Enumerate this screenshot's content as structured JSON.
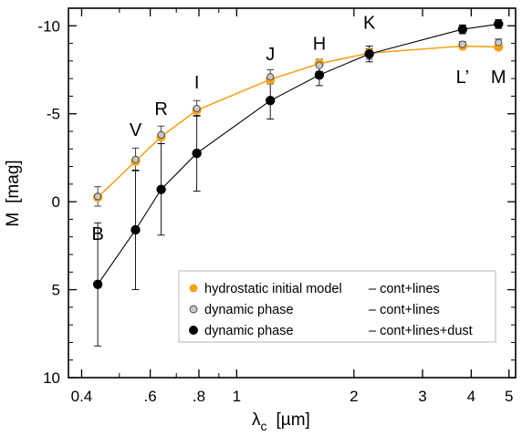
{
  "chart_data": {
    "type": "scatter",
    "xlabel": "λ",
    "xlabel_sub": "c",
    "xlabel_unit": "[µm]",
    "ylabel": "M",
    "ylabel_unit": "[mag]",
    "xscale": "log",
    "xlim": [
      0.37,
      5.2
    ],
    "ylim": [
      10,
      -11
    ],
    "y_inverted": true,
    "x_ticks": [
      {
        "value": 0.4,
        "label": "0.4"
      },
      {
        "value": 0.6,
        "label": ".6"
      },
      {
        "value": 0.8,
        "label": ".8"
      },
      {
        "value": 1,
        "label": "1"
      },
      {
        "value": 2,
        "label": "2"
      },
      {
        "value": 3,
        "label": "3"
      },
      {
        "value": 4,
        "label": "4"
      },
      {
        "value": 5,
        "label": "5"
      }
    ],
    "x_minor_ticks": [
      0.5,
      0.7,
      0.9
    ],
    "y_ticks": [
      {
        "value": 10,
        "label": "10"
      },
      {
        "value": 5,
        "label": "5"
      },
      {
        "value": 0,
        "label": "0"
      },
      {
        "value": -5,
        "label": "-5"
      },
      {
        "value": -10,
        "label": "-10"
      }
    ],
    "y_minor_step": 1,
    "grid": false,
    "legend_position": "bottom-right",
    "bands": [
      {
        "label": "B",
        "x": 0.44
      },
      {
        "label": "V",
        "x": 0.55
      },
      {
        "label": "R",
        "x": 0.64
      },
      {
        "label": "I",
        "x": 0.79
      },
      {
        "label": "J",
        "x": 1.22
      },
      {
        "label": "H",
        "x": 1.63
      },
      {
        "label": "K",
        "x": 2.19
      },
      {
        "label": "L’",
        "x": 3.8
      },
      {
        "label": "M",
        "x": 4.7
      }
    ],
    "band_label_y": [
      1.8,
      -4.1,
      -5.3,
      -6.8,
      -8.4,
      -9.0,
      -10.2,
      -7.1,
      -7.1
    ],
    "series": [
      {
        "name": "hydrostatic initial model",
        "description": "– cont+lines",
        "color": "#f5a31a",
        "marker": "filled-orange",
        "connected": true,
        "x": [
          0.44,
          0.55,
          0.64,
          0.79,
          1.22,
          1.63,
          2.19,
          3.8,
          4.7
        ],
        "y": [
          -0.25,
          -2.3,
          -3.7,
          -5.2,
          -6.95,
          -7.85,
          -8.45,
          -8.85,
          -8.8
        ],
        "err": [
          0,
          0,
          0,
          0,
          0,
          0,
          0,
          0,
          0
        ]
      },
      {
        "name": "dynamic phase",
        "description": "– cont+lines",
        "color": "#c8c8c8",
        "marker": "open-grey",
        "connected": false,
        "x": [
          0.44,
          0.55,
          0.64,
          0.79,
          1.22,
          1.63,
          2.19,
          3.8,
          4.7
        ],
        "y": [
          -0.3,
          -2.4,
          -3.8,
          -5.3,
          -7.1,
          -7.75,
          -8.4,
          -8.95,
          -9.05
        ],
        "err": [
          0.55,
          0.65,
          0.5,
          0.45,
          0.4,
          0.35,
          0.3,
          0.15,
          0.2
        ]
      },
      {
        "name": "dynamic phase",
        "description": "– cont+lines+dust",
        "color": "#000000",
        "marker": "filled-black",
        "connected": true,
        "x": [
          0.44,
          0.55,
          0.64,
          0.79,
          1.22,
          1.63,
          2.19,
          3.8,
          4.7
        ],
        "y": [
          4.7,
          1.6,
          -0.7,
          -2.75,
          -5.75,
          -7.2,
          -8.4,
          -9.8,
          -10.1
        ],
        "err": [
          3.5,
          3.4,
          2.6,
          2.15,
          1.05,
          0.6,
          0.45,
          0.25,
          0.25
        ]
      }
    ]
  }
}
